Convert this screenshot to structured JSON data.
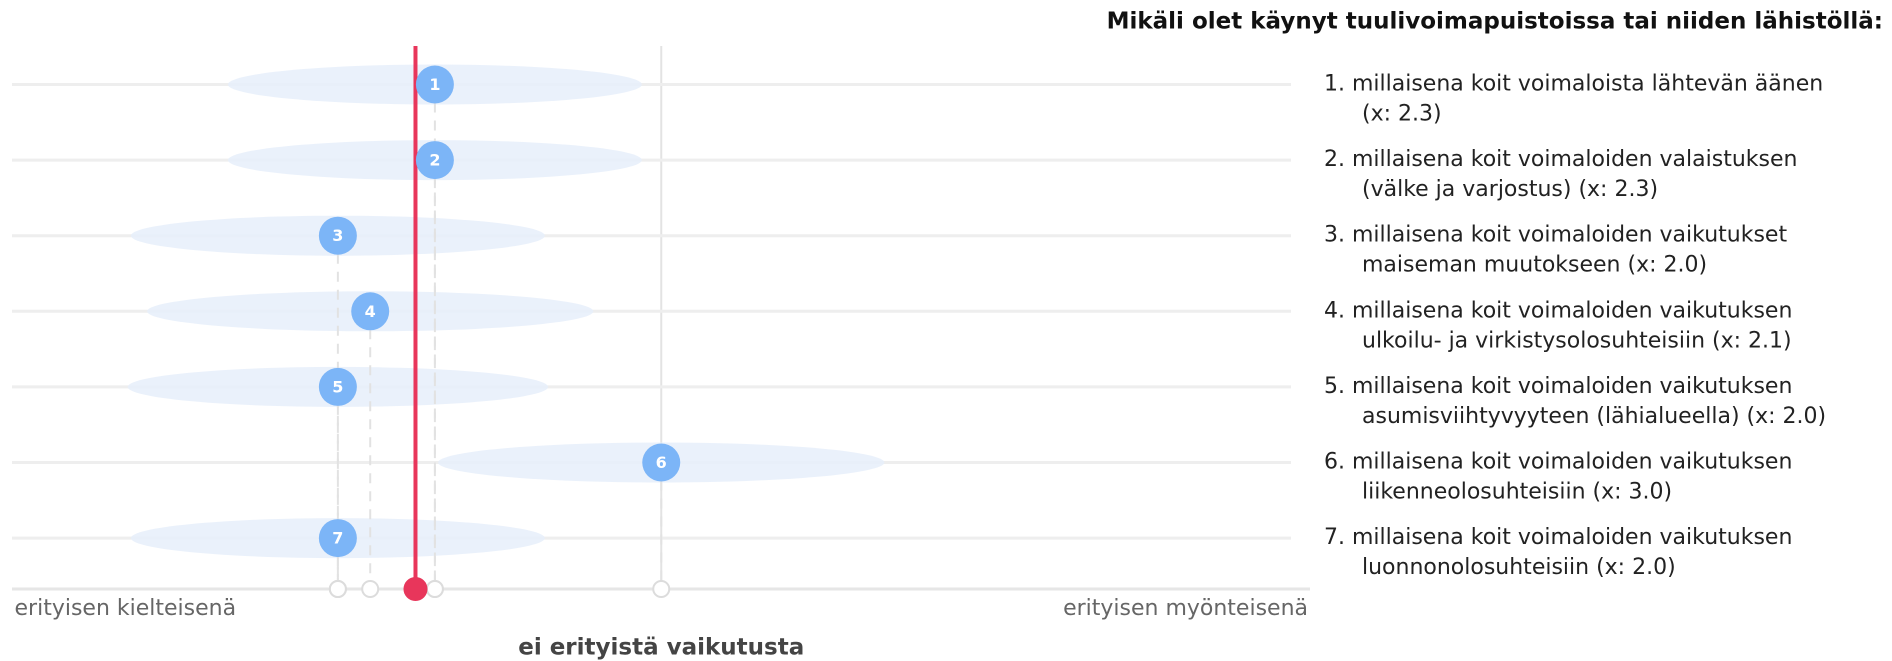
{
  "chart_data": {
    "type": "dot",
    "title": "Mikäli olet käynyt tuulivoimapuistoissa tai niiden lähistöllä:",
    "categories": [
      "1",
      "2",
      "3",
      "4",
      "5",
      "6",
      "7"
    ],
    "values": [
      2.3,
      2.3,
      2.0,
      2.1,
      2.0,
      3.0,
      2.0
    ],
    "spread": [
      0.64,
      0.64,
      0.64,
      0.69,
      0.65,
      0.69,
      0.64
    ],
    "mean": 2.24,
    "xlim": [
      1,
      5
    ],
    "xticks": [
      {
        "value": 1,
        "label": "erityisen kielteisenä"
      },
      {
        "value": 3,
        "label": "ei erityistä vaikutusta"
      },
      {
        "value": 5,
        "label": "erityisen myönteisenä"
      }
    ],
    "point_color": "#7cb5f7",
    "spread_color": "#e6effa",
    "mean_color": "#e8365b",
    "legend": [
      [
        "1. millaisena koit voimaloista lähtevän äänen",
        "(x: 2.3)"
      ],
      [
        "2. millaisena koit voimaloiden valaistuksen",
        "(välke ja varjostus)  (x: 2.3)"
      ],
      [
        "3. millaisena koit voimaloiden vaikutukset",
        "maiseman muutokseen  (x: 2.0)"
      ],
      [
        "4. millaisena koit voimaloiden vaikutuksen",
        "ulkoilu- ja virkistysolosuhteisiin  (x: 2.1)"
      ],
      [
        "5. millaisena koit voimaloiden vaikutuksen",
        "asumisviihtyvyyteen (lähialueella)  (x: 2.0)"
      ],
      [
        "6. millaisena koit voimaloiden vaikutuksen",
        "liikenneolosuhteisiin  (x: 3.0)"
      ],
      [
        "7. millaisena koit voimaloiden vaikutuksen",
        "luonnonolosuhteisiin  (x: 2.0)"
      ]
    ]
  }
}
